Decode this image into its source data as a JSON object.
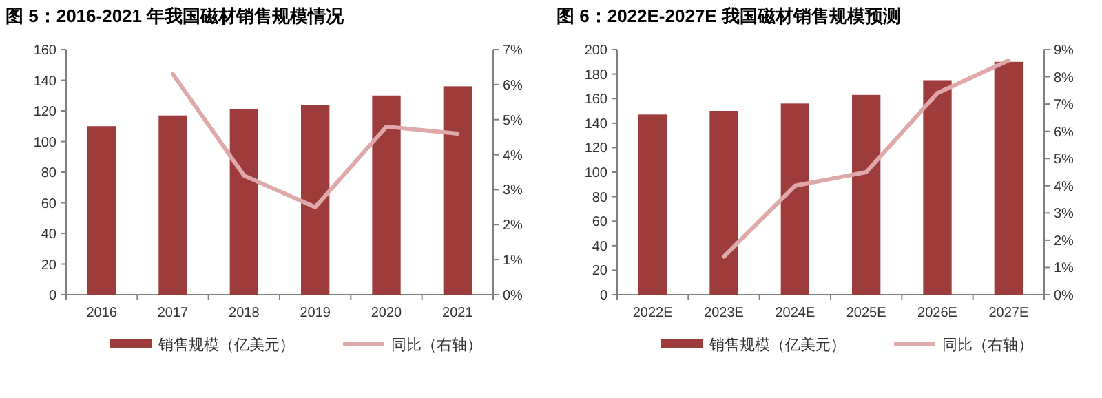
{
  "chart_data": [
    {
      "type": "bar",
      "title": "图 5：2016-2021 年我国磁材销售规模情况",
      "categories": [
        "2016",
        "2017",
        "2018",
        "2019",
        "2020",
        "2021"
      ],
      "series": [
        {
          "name": "销售规模（亿美元）",
          "color": "#9e3b3b",
          "values": [
            110,
            117,
            121,
            124,
            130,
            136
          ]
        },
        {
          "name": "同比（右轴）",
          "type": "line",
          "axis": "y2",
          "color": "#e0a9a9",
          "values": [
            null,
            6.3,
            3.4,
            2.5,
            4.8,
            4.6
          ]
        }
      ],
      "ylim": [
        0,
        160
      ],
      "yticks": [
        0,
        20,
        40,
        60,
        80,
        100,
        120,
        140,
        160
      ],
      "y2lim": [
        0,
        7
      ],
      "y2ticks": [
        {
          "value": 0,
          "label": "0%"
        },
        {
          "value": 1,
          "label": "1%"
        },
        {
          "value": 2,
          "label": "2%"
        },
        {
          "value": 3,
          "label": "3%"
        },
        {
          "value": 4,
          "label": "4%"
        },
        {
          "value": 5,
          "label": "5%"
        },
        {
          "value": 6,
          "label": "6%"
        },
        {
          "value": 7,
          "label": "7%"
        }
      ],
      "legend": "bottom",
      "grid": false
    },
    {
      "type": "bar",
      "title": "图 6：2022E-2027E 我国磁材销售规模预测",
      "categories": [
        "2022E",
        "2023E",
        "2024E",
        "2025E",
        "2026E",
        "2027E"
      ],
      "series": [
        {
          "name": "销售规模（亿美元）",
          "color": "#9e3b3b",
          "values": [
            147,
            150,
            156,
            163,
            175,
            190
          ]
        },
        {
          "name": "同比（右轴）",
          "type": "line",
          "axis": "y2",
          "color": "#e0a9a9",
          "values": [
            null,
            1.4,
            4.0,
            4.5,
            7.4,
            8.6
          ]
        }
      ],
      "ylim": [
        0,
        200
      ],
      "yticks": [
        0,
        20,
        40,
        60,
        80,
        100,
        120,
        140,
        160,
        180,
        200
      ],
      "y2lim": [
        0,
        9
      ],
      "y2ticks": [
        {
          "value": 0,
          "label": "0%"
        },
        {
          "value": 1,
          "label": "1%"
        },
        {
          "value": 2,
          "label": "2%"
        },
        {
          "value": 3,
          "label": "3%"
        },
        {
          "value": 4,
          "label": "4%"
        },
        {
          "value": 5,
          "label": "5%"
        },
        {
          "value": 6,
          "label": "6%"
        },
        {
          "value": 7,
          "label": "7%"
        },
        {
          "value": 8,
          "label": "8%"
        },
        {
          "value": 9,
          "label": "9%"
        }
      ],
      "legend": "bottom",
      "grid": false
    }
  ]
}
